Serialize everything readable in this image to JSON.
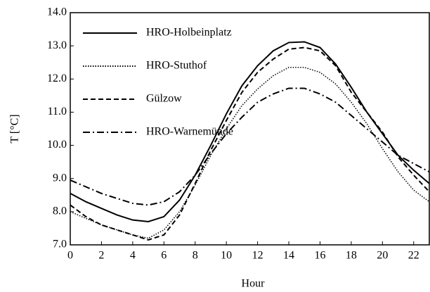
{
  "chart_data": {
    "type": "line",
    "x_label": "Hour",
    "y_label": "T [°C]",
    "x": [
      0,
      1,
      2,
      3,
      4,
      5,
      6,
      7,
      8,
      9,
      10,
      11,
      12,
      13,
      14,
      15,
      16,
      17,
      18,
      19,
      20,
      21,
      22,
      23
    ],
    "xlim": [
      0,
      23
    ],
    "xticks": [
      0,
      2,
      4,
      6,
      8,
      10,
      12,
      14,
      16,
      18,
      20,
      22
    ],
    "ylim": [
      7,
      14
    ],
    "yticks": [
      {
        "value": 7,
        "label": "7.0"
      },
      {
        "value": 8,
        "label": "8.0"
      },
      {
        "value": 9,
        "label": "9.0"
      },
      {
        "value": 10,
        "label": "10.0"
      },
      {
        "value": 11,
        "label": "11.0"
      },
      {
        "value": 12,
        "label": "12.0"
      },
      {
        "value": 13,
        "label": "13.0"
      },
      {
        "value": 14,
        "label": "14.0"
      }
    ],
    "legend": "upper left",
    "series": [
      {
        "name": "HRO-Holbeinplatz",
        "color": "#000000",
        "dash": "solid",
        "values": [
          8.55,
          8.3,
          8.1,
          7.9,
          7.75,
          7.7,
          7.85,
          8.35,
          9.1,
          10.0,
          10.95,
          11.8,
          12.4,
          12.85,
          13.1,
          13.12,
          12.95,
          12.45,
          11.75,
          11.0,
          10.35,
          9.7,
          9.25,
          8.85
        ]
      },
      {
        "name": "HRO-Stuthof",
        "color": "#000000",
        "dash": "dotted",
        "values": [
          8.0,
          7.8,
          7.6,
          7.45,
          7.3,
          7.2,
          7.45,
          8.0,
          8.8,
          9.7,
          10.5,
          11.2,
          11.7,
          12.1,
          12.35,
          12.35,
          12.2,
          11.85,
          11.3,
          10.65,
          9.9,
          9.2,
          8.65,
          8.3
        ]
      },
      {
        "name": "Gülzow",
        "color": "#000000",
        "dash": "dashed",
        "values": [
          8.2,
          7.85,
          7.6,
          7.45,
          7.3,
          7.15,
          7.3,
          7.9,
          8.85,
          9.85,
          10.75,
          11.6,
          12.2,
          12.6,
          12.9,
          12.95,
          12.85,
          12.4,
          11.6,
          11.0,
          10.4,
          9.65,
          9.1,
          8.6
        ]
      },
      {
        "name": "HRO-Warnemünde",
        "color": "#000000",
        "dash": "dashdot",
        "values": [
          8.95,
          8.75,
          8.55,
          8.4,
          8.25,
          8.2,
          8.3,
          8.6,
          9.1,
          9.75,
          10.35,
          10.85,
          11.3,
          11.55,
          11.72,
          11.72,
          11.55,
          11.3,
          10.9,
          10.5,
          10.1,
          9.7,
          9.45,
          9.2
        ]
      }
    ]
  }
}
